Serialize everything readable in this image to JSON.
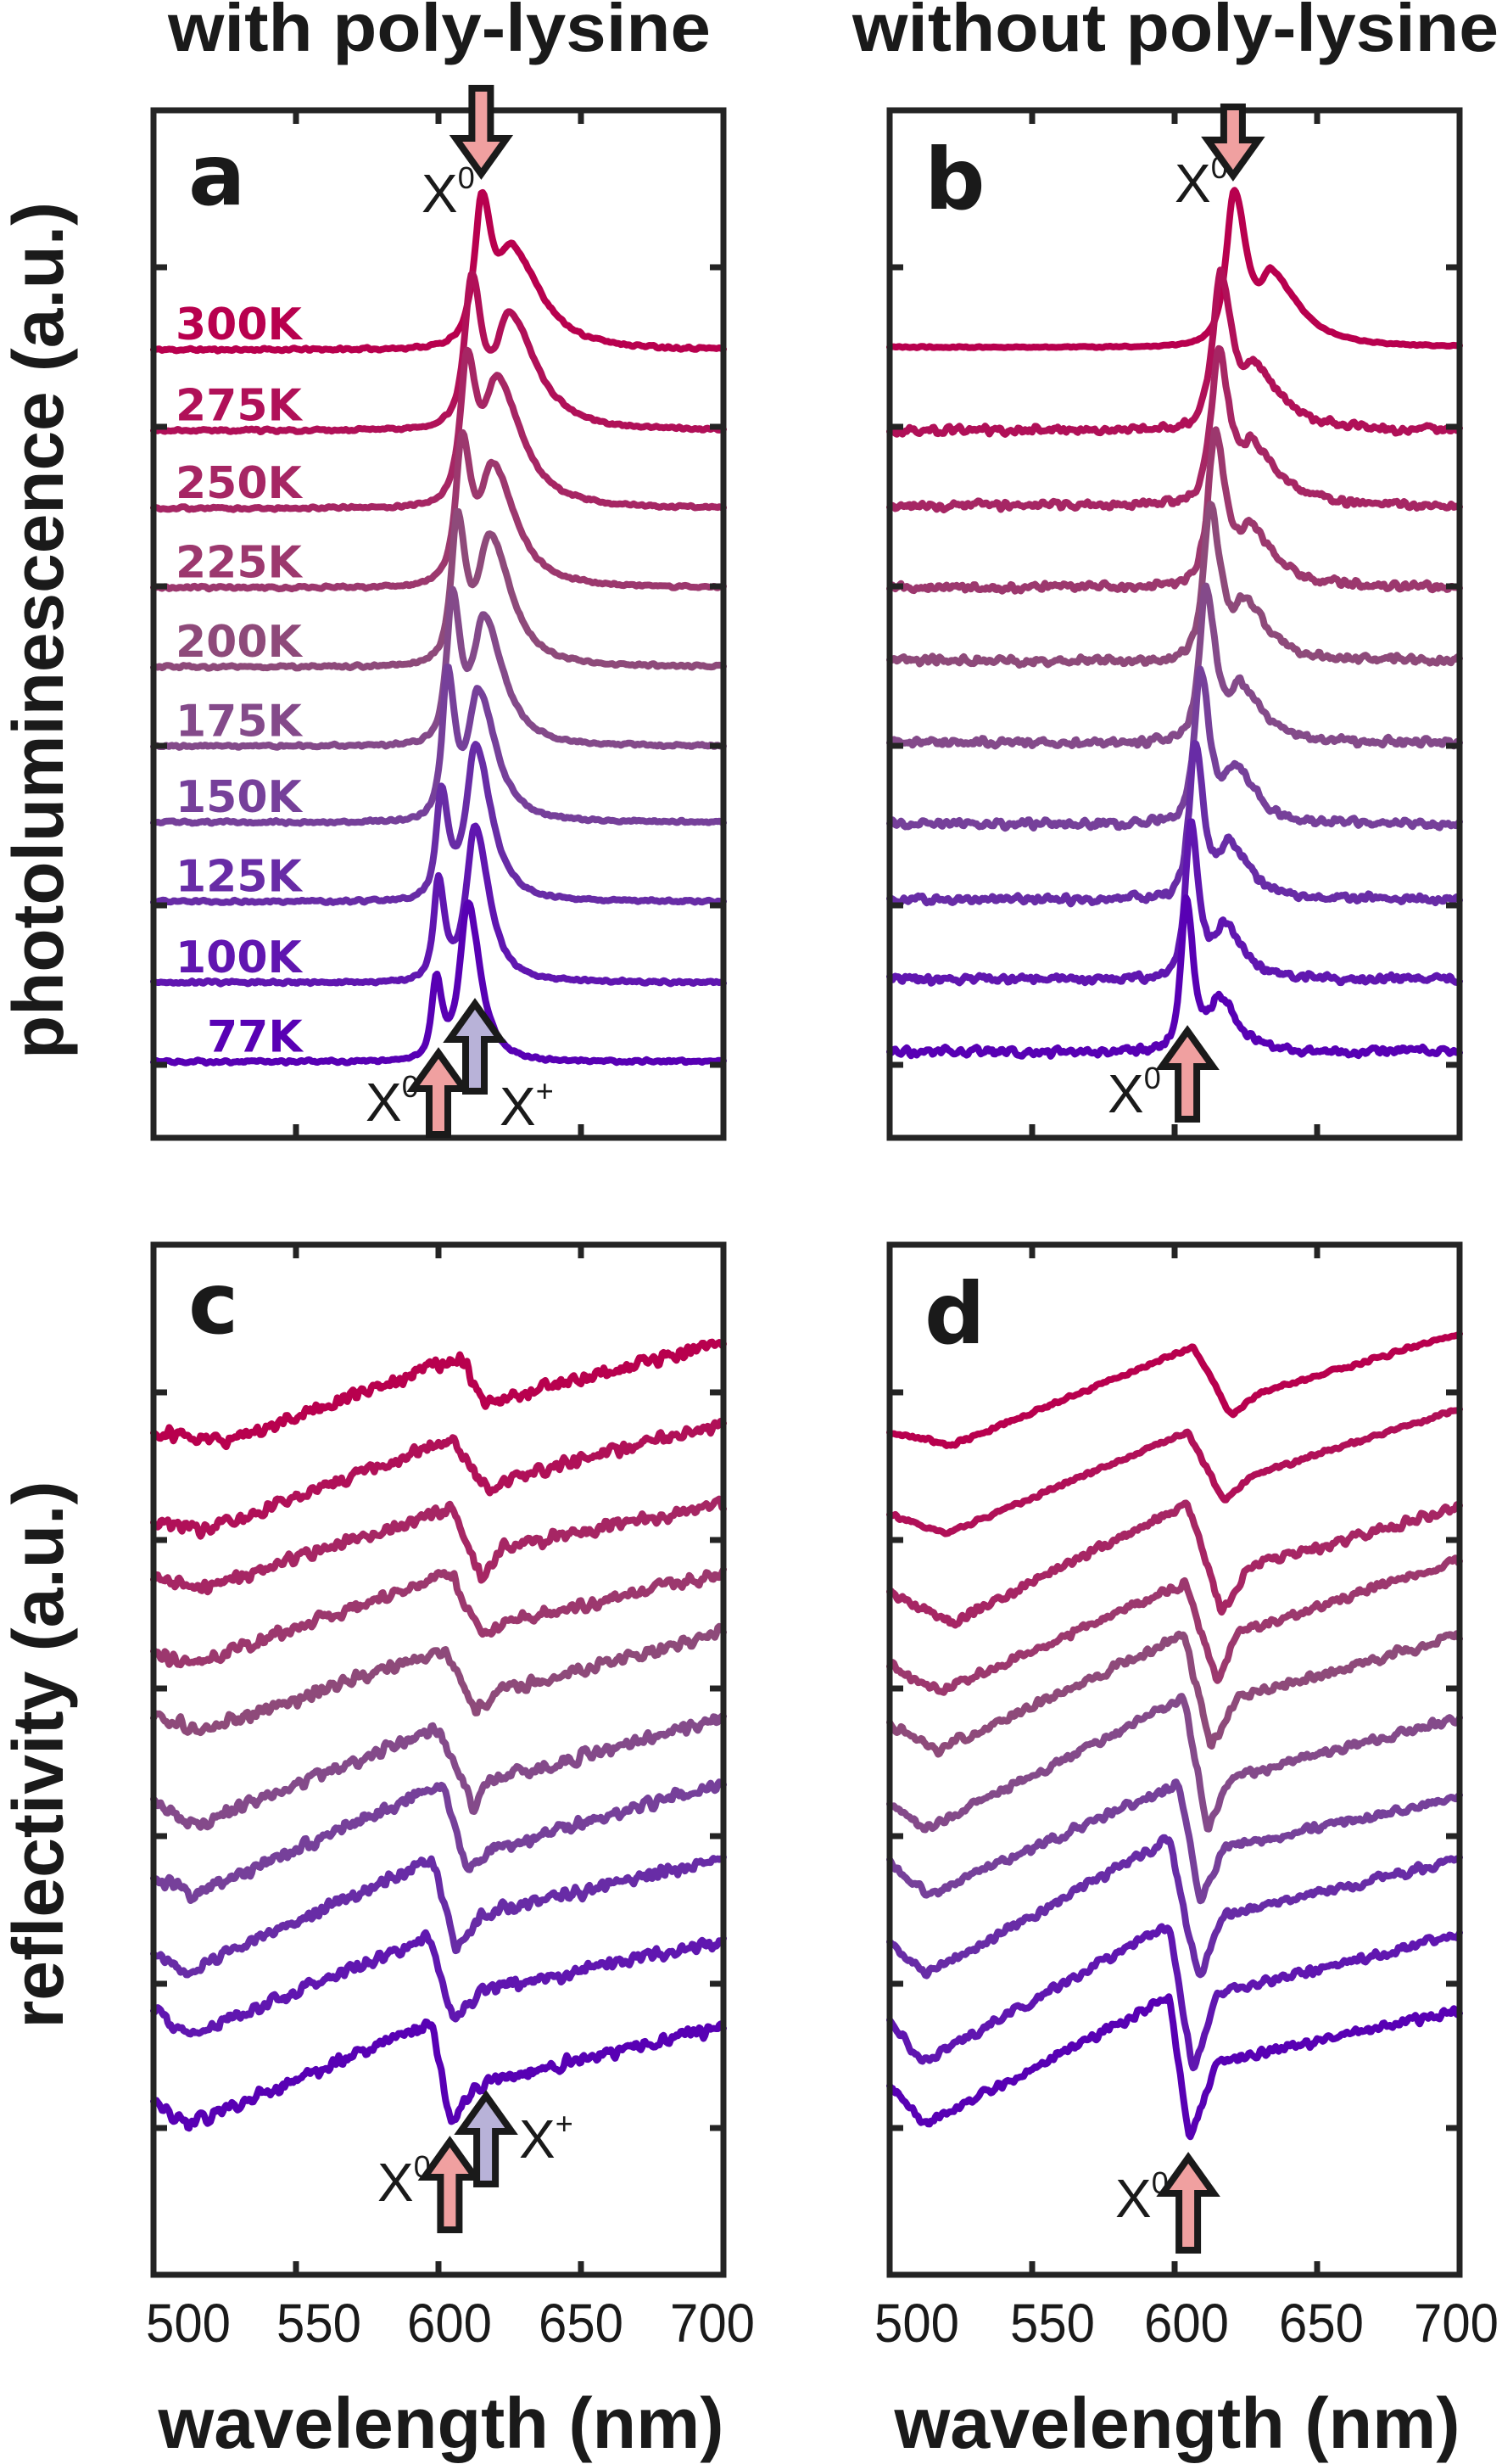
{
  "titles": {
    "left": "with poly-lysine",
    "right": "without poly-lysine"
  },
  "ylabels": {
    "top": "photoluminescence (a.u.)",
    "bottom": "reflectivity (a.u.)"
  },
  "arrow_colors": {
    "X0": "#f0a0a0",
    "X+": "#b8b2d8"
  },
  "chart_data": [
    {
      "panel": "a",
      "type": "line",
      "kind": "photoluminescence",
      "xlim": [
        500,
        700
      ],
      "xticks": [
        550,
        600,
        650
      ],
      "ylim": [
        -0.48,
        6.0
      ],
      "series": [
        {
          "name": "300K",
          "color": "#b8004e",
          "offset": 4.49,
          "x0_peak_nm": 615.2,
          "x0_height": 1.01,
          "xplus_peak_nm": 626.0,
          "xplus_height": 0.68
        },
        {
          "name": "275K",
          "color": "#b01058",
          "offset": 3.98,
          "x0_peak_nm": 611.7,
          "x0_height": 1.0,
          "xplus_peak_nm": 624.9,
          "xplus_height": 0.76
        },
        {
          "name": "250K",
          "color": "#a62664",
          "offset": 3.49,
          "x0_peak_nm": 610.0,
          "x0_height": 1.01,
          "xplus_peak_nm": 620.6,
          "xplus_height": 0.85
        },
        {
          "name": "225K",
          "color": "#9c386e",
          "offset": 2.99,
          "x0_peak_nm": 608.3,
          "x0_height": 0.99,
          "xplus_peak_nm": 619.0,
          "xplus_height": 0.8
        },
        {
          "name": "200K",
          "color": "#8e4a7a",
          "offset": 2.49,
          "x0_peak_nm": 606.6,
          "x0_height": 0.99,
          "xplus_peak_nm": 618.0,
          "xplus_height": 0.85
        },
        {
          "name": "175K",
          "color": "#844a8a",
          "offset": 1.99,
          "x0_peak_nm": 604.9,
          "x0_height": 1.0,
          "xplus_peak_nm": 616.0,
          "xplus_height": 0.83
        },
        {
          "name": "150K",
          "color": "#76409a",
          "offset": 1.51,
          "x0_peak_nm": 603.2,
          "x0_height": 0.99,
          "xplus_peak_nm": 614.0,
          "xplus_height": 0.85
        },
        {
          "name": "125K",
          "color": "#682ca6",
          "offset": 1.01,
          "x0_peak_nm": 601.0,
          "x0_height": 0.73,
          "xplus_peak_nm": 613.0,
          "xplus_height": 0.99
        },
        {
          "name": "100K",
          "color": "#6016b0",
          "offset": 0.5,
          "x0_peak_nm": 600.0,
          "x0_height": 0.67,
          "xplus_peak_nm": 612.8,
          "xplus_height": 0.99
        },
        {
          "name": "77K",
          "color": "#5800b4",
          "offset": 0.0,
          "x0_peak_nm": 599.2,
          "x0_height": 0.56,
          "xplus_peak_nm": 610.3,
          "xplus_height": 1.01
        }
      ],
      "annotations": [
        {
          "label": "X",
          "sup": "0",
          "wavelength_nm": 615,
          "direction": "down",
          "color": "#f0a0a0"
        },
        {
          "label": "X",
          "sup": "0",
          "wavelength_nm": 600,
          "direction": "up",
          "color": "#f0a0a0"
        },
        {
          "label": "X",
          "sup": "+",
          "wavelength_nm": 612.8,
          "direction": "up",
          "color": "#b8b2d8"
        }
      ]
    },
    {
      "panel": "b",
      "type": "line",
      "kind": "photoluminescence",
      "xlim": [
        500,
        700
      ],
      "xticks": [
        550,
        600,
        650
      ],
      "ylim": [
        -0.55,
        6.0
      ],
      "series": [
        {
          "color": "#b8004e",
          "offset": 4.49,
          "x0_peak_nm": 620.9,
          "x0_height": 1.0,
          "shoulder_nm": 634.0,
          "shoulder_height": 0.4
        },
        {
          "color": "#b01058",
          "offset": 3.96,
          "x0_peak_nm": 616.1,
          "x0_height": 1.0,
          "shoulder_nm": 628.1,
          "shoulder_height": 0.33
        },
        {
          "color": "#a62664",
          "offset": 3.48,
          "x0_peak_nm": 615.4,
          "x0_height": 1.0,
          "shoulder_nm": 627.4,
          "shoulder_height": 0.33
        },
        {
          "color": "#9c386e",
          "offset": 2.96,
          "x0_peak_nm": 614.2,
          "x0_height": 1.0,
          "shoulder_nm": 626.2,
          "shoulder_height": 0.33
        },
        {
          "color": "#8e4a7a",
          "offset": 2.49,
          "x0_peak_nm": 612.5,
          "x0_height": 1.0,
          "shoulder_nm": 624.5,
          "shoulder_height": 0.33
        },
        {
          "color": "#844a8a",
          "offset": 1.97,
          "x0_peak_nm": 611.0,
          "x0_height": 1.0,
          "shoulder_nm": 623.0,
          "shoulder_height": 0.33
        },
        {
          "color": "#76409a",
          "offset": 1.45,
          "x0_peak_nm": 609.0,
          "x0_height": 1.0,
          "shoulder_nm": 621.0,
          "shoulder_height": 0.33
        },
        {
          "color": "#682ca6",
          "offset": 0.97,
          "x0_peak_nm": 607.1,
          "x0_height": 1.0,
          "shoulder_nm": 619.1,
          "shoulder_height": 0.33
        },
        {
          "color": "#6016b0",
          "offset": 0.46,
          "x0_peak_nm": 605.6,
          "x0_height": 1.0,
          "shoulder_nm": 617.6,
          "shoulder_height": 0.33
        },
        {
          "color": "#5800b4",
          "offset": 0.0,
          "x0_peak_nm": 604.0,
          "x0_height": 1.0,
          "shoulder_nm": 616.0,
          "shoulder_height": 0.33
        }
      ],
      "annotations": [
        {
          "label": "X",
          "sup": "0",
          "wavelength_nm": 620.5,
          "direction": "down",
          "color": "#f0a0a0"
        },
        {
          "label": "X",
          "sup": "0",
          "wavelength_nm": 604.5,
          "direction": "up",
          "color": "#f0a0a0"
        }
      ]
    },
    {
      "panel": "c",
      "type": "line",
      "kind": "reflectivity",
      "xlabel": "wavelength (nm)",
      "xlim": [
        500,
        700
      ],
      "xticks": [
        550,
        600,
        650
      ],
      "xticklabels": [
        "500",
        "550",
        "600",
        "650",
        "700"
      ],
      "ylim": [
        0,
        15.68
      ],
      "series": [
        {
          "color": "#b8004e",
          "points": [
            [
              500,
              12.83
            ],
            [
              525.5,
              12.68
            ],
            [
              607.8,
              13.98
            ],
            [
              616.7,
              13.23
            ],
            [
              622.4,
              13.33
            ],
            [
              700,
              14.18
            ]
          ]
        },
        {
          "color": "#b01058",
          "points": [
            [
              500,
              11.43
            ],
            [
              517.9,
              11.33
            ],
            [
              605.2,
              12.73
            ],
            [
              618.0,
              11.88
            ],
            [
              623.7,
              12.08
            ],
            [
              700,
              12.98
            ]
          ]
        },
        {
          "color": "#a62664",
          "points": [
            [
              500,
              10.63
            ],
            [
              516.6,
              10.43
            ],
            [
              604.6,
              11.68
            ],
            [
              615.4,
              10.58
            ],
            [
              622.4,
              11.08
            ],
            [
              700,
              11.73
            ]
          ]
        },
        {
          "color": "#9c386e",
          "points": [
            [
              500,
              9.48
            ],
            [
              512.8,
              9.28
            ],
            [
              604.6,
              10.68
            ],
            [
              615.4,
              9.68
            ],
            [
              622.4,
              9.93
            ],
            [
              700,
              10.68
            ]
          ]
        },
        {
          "color": "#8e4a7a",
          "points": [
            [
              500,
              8.53
            ],
            [
              516.6,
              8.28
            ],
            [
              602.7,
              9.53
            ],
            [
              612.9,
              8.58
            ],
            [
              621.2,
              8.88
            ],
            [
              700,
              9.78
            ]
          ]
        },
        {
          "color": "#844a8a",
          "points": [
            [
              500,
              7.18
            ],
            [
              514.0,
              6.83
            ],
            [
              599.5,
              8.33
            ],
            [
              612.2,
              7.13
            ],
            [
              618.6,
              7.53
            ],
            [
              700,
              8.48
            ]
          ]
        },
        {
          "color": "#76409a",
          "points": [
            [
              500,
              6.08
            ],
            [
              514.0,
              5.78
            ],
            [
              601.4,
              7.48
            ],
            [
              609.7,
              6.13
            ],
            [
              618.6,
              6.48
            ],
            [
              700,
              7.48
            ]
          ]
        },
        {
          "color": "#682ca6",
          "points": [
            [
              500,
              4.83
            ],
            [
              512.1,
              4.63
            ],
            [
              597.6,
              6.33
            ],
            [
              606.5,
              4.93
            ],
            [
              614.8,
              5.48
            ],
            [
              700,
              6.33
            ]
          ]
        },
        {
          "color": "#6016b0",
          "points": [
            [
              500,
              4.03
            ],
            [
              511.5,
              3.63
            ],
            [
              596.9,
              5.13
            ],
            [
              605.2,
              3.88
            ],
            [
              614.8,
              4.33
            ],
            [
              700,
              5.08
            ]
          ]
        },
        {
          "color": "#5800b4",
          "points": [
            [
              500,
              2.68
            ],
            [
              512.1,
              2.28
            ],
            [
              597.6,
              3.83
            ],
            [
              604.0,
              2.38
            ],
            [
              616.1,
              2.93
            ],
            [
              700,
              3.78
            ]
          ]
        }
      ],
      "annotations": [
        {
          "label": "X",
          "sup": "0",
          "wavelength_nm": 604,
          "direction": "up",
          "color": "#f0a0a0"
        },
        {
          "label": "X",
          "sup": "+",
          "wavelength_nm": 616.7,
          "direction": "up",
          "color": "#b8b2d8"
        }
      ]
    },
    {
      "panel": "d",
      "type": "line",
      "kind": "reflectivity",
      "xlabel": "wavelength (nm)",
      "xlim": [
        500,
        700
      ],
      "xticks": [
        550,
        600,
        650
      ],
      "xticklabels": [
        "500",
        "550",
        "600",
        "650",
        "700"
      ],
      "ylim": [
        0,
        15.68
      ],
      "series": [
        {
          "color": "#b8004e",
          "points": [
            [
              500,
              12.83
            ],
            [
              521.7,
              12.63
            ],
            [
              606.5,
              14.13
            ],
            [
              619.9,
              13.08
            ],
            [
              630.1,
              13.43
            ],
            [
              700,
              14.33
            ]
          ]
        },
        {
          "color": "#b01058",
          "points": [
            [
              500,
              11.58
            ],
            [
              519.8,
              11.28
            ],
            [
              604.6,
              12.83
            ],
            [
              617.3,
              11.78
            ],
            [
              627.6,
              12.18
            ],
            [
              700,
              13.18
            ]
          ]
        },
        {
          "color": "#a62664",
          "points": [
            [
              500,
              10.38
            ],
            [
              521.7,
              9.93
            ],
            [
              604.6,
              11.73
            ],
            [
              616.7,
              10.08
            ],
            [
              626.3,
              10.78
            ],
            [
              700,
              11.68
            ]
          ]
        },
        {
          "color": "#9c386e",
          "points": [
            [
              500,
              9.28
            ],
            [
              517.2,
              8.88
            ],
            [
              604.0,
              10.53
            ],
            [
              614.8,
              9.03
            ],
            [
              622.4,
              9.78
            ],
            [
              700,
              10.88
            ]
          ]
        },
        {
          "color": "#8e4a7a",
          "points": [
            [
              500,
              8.38
            ],
            [
              516.6,
              7.98
            ],
            [
              603.3,
              9.73
            ],
            [
              612.9,
              8.03
            ],
            [
              622.4,
              8.78
            ],
            [
              700,
              9.73
            ]
          ]
        },
        {
          "color": "#844a8a",
          "points": [
            [
              500,
              7.18
            ],
            [
              512.8,
              6.78
            ],
            [
              603.3,
              8.78
            ],
            [
              611.6,
              6.78
            ],
            [
              619.9,
              7.58
            ],
            [
              700,
              8.48
            ]
          ]
        },
        {
          "color": "#76409a",
          "points": [
            [
              500,
              6.28
            ],
            [
              513.4,
              5.78
            ],
            [
              601.4,
              7.48
            ],
            [
              609.1,
              5.68
            ],
            [
              617.3,
              6.48
            ],
            [
              700,
              7.28
            ]
          ]
        },
        {
          "color": "#682ca6",
          "points": [
            [
              500,
              5.03
            ],
            [
              513.4,
              4.58
            ],
            [
              598.2,
              6.63
            ],
            [
              608.4,
              4.48
            ],
            [
              617.3,
              5.48
            ],
            [
              700,
              6.33
            ]
          ]
        },
        {
          "color": "#6016b0",
          "points": [
            [
              500,
              3.88
            ],
            [
              511.5,
              3.23
            ],
            [
              598.2,
              5.33
            ],
            [
              606.5,
              3.08
            ],
            [
              614.8,
              4.28
            ],
            [
              700,
              5.18
            ]
          ]
        },
        {
          "color": "#5800b4",
          "points": [
            [
              500,
              2.88
            ],
            [
              512.1,
              2.28
            ],
            [
              598.2,
              4.23
            ],
            [
              605.2,
              2.03
            ],
            [
              614.8,
              3.23
            ],
            [
              700,
              4.03
            ]
          ]
        }
      ],
      "annotations": [
        {
          "label": "X",
          "sup": "0",
          "wavelength_nm": 604.8,
          "direction": "up",
          "color": "#f0a0a0"
        }
      ]
    }
  ]
}
